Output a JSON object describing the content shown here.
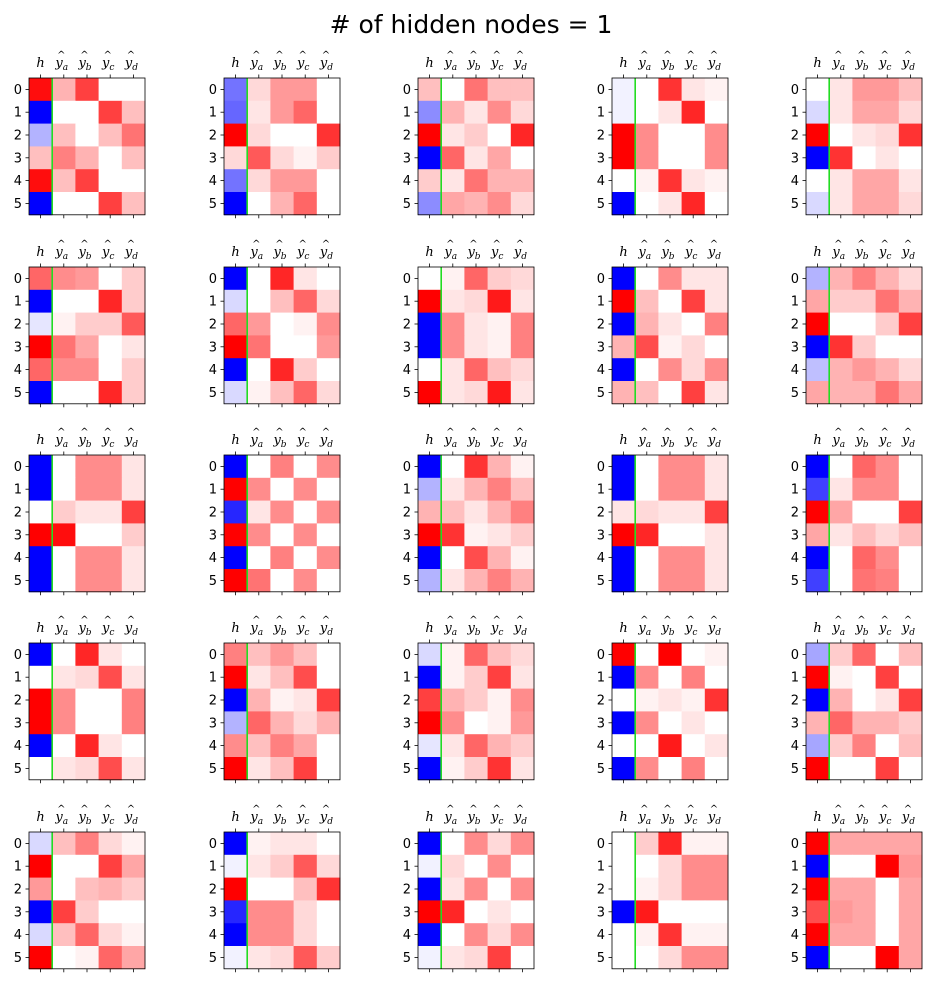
{
  "figure_title": "# of hidden nodes = 1",
  "colors": {
    "negative": "#0000ff",
    "positive": "#ff0000",
    "neutral": "#ffffff",
    "separator": "#22dd22",
    "axis": "#000000"
  },
  "chart_data": {
    "type": "heatmap",
    "grid": "5x5 panels",
    "value_range": [
      -1,
      1
    ],
    "colormap": "bwr",
    "column_labels": [
      {
        "base": "h",
        "hat": false,
        "sub": ""
      },
      {
        "base": "y",
        "hat": true,
        "sub": "a"
      },
      {
        "base": "y",
        "hat": true,
        "sub": "b"
      },
      {
        "base": "y",
        "hat": true,
        "sub": "c"
      },
      {
        "base": "y",
        "hat": true,
        "sub": "d"
      }
    ],
    "row_labels": [
      "0",
      "1",
      "2",
      "3",
      "4",
      "5"
    ],
    "panels": [
      [
        [
          0.95,
          0.3,
          0.75,
          0,
          0
        ],
        [
          -1,
          0,
          0,
          0.75,
          0.25
        ],
        [
          -0.3,
          0.25,
          0,
          0.25,
          0.55
        ],
        [
          0.25,
          0.5,
          0.3,
          0,
          0.25
        ],
        [
          0.95,
          0.25,
          0.75,
          0,
          0
        ],
        [
          -1,
          0,
          0,
          0.75,
          0.25
        ]
      ],
      [
        [
          -0.55,
          0.15,
          0.4,
          0.4,
          0
        ],
        [
          -0.6,
          0.1,
          0.4,
          0.6,
          0
        ],
        [
          1,
          0.15,
          0,
          0,
          0.8
        ],
        [
          0.15,
          0.65,
          0.15,
          0.05,
          0.2
        ],
        [
          -0.55,
          0.15,
          0.4,
          0.4,
          0
        ],
        [
          -1,
          0,
          0.3,
          0.6,
          0
        ]
      ],
      [
        [
          0.25,
          0,
          0.55,
          0.25,
          0.25
        ],
        [
          -0.45,
          0.3,
          0.1,
          0.45,
          0.15
        ],
        [
          1,
          0.1,
          0.2,
          0,
          0.85
        ],
        [
          -1,
          0.6,
          0.1,
          0.35,
          0
        ],
        [
          0.2,
          0.1,
          0.55,
          0.3,
          0.3
        ],
        [
          -0.45,
          0.35,
          0.3,
          0.45,
          0.15
        ]
      ],
      [
        [
          -0.05,
          0,
          0.8,
          0.1,
          0.05
        ],
        [
          -0.05,
          0,
          0.1,
          0.85,
          0
        ],
        [
          1,
          0.45,
          0,
          0,
          0.45
        ],
        [
          1,
          0.45,
          0,
          0,
          0.45
        ],
        [
          0,
          0.05,
          0.8,
          0.1,
          0.05
        ],
        [
          -1,
          0,
          0.1,
          0.85,
          0
        ]
      ],
      [
        [
          0,
          0.1,
          0.4,
          0.4,
          0.25
        ],
        [
          -0.15,
          0.1,
          0.35,
          0.35,
          0.15
        ],
        [
          1,
          0,
          0.1,
          0.15,
          0.8
        ],
        [
          -1,
          0.8,
          0,
          0.1,
          0
        ],
        [
          0,
          0.1,
          0.35,
          0.35,
          0.1
        ],
        [
          -0.15,
          0.1,
          0.35,
          0.35,
          0.15
        ]
      ],
      [
        [
          0.6,
          0.45,
          0.4,
          0,
          0.2
        ],
        [
          -1,
          0,
          0,
          0.85,
          0.2
        ],
        [
          -0.1,
          0.05,
          0.2,
          0.2,
          0.65
        ],
        [
          1,
          0.55,
          0.35,
          0,
          0.1
        ],
        [
          0.6,
          0.45,
          0.45,
          0,
          0.2
        ],
        [
          -1,
          0,
          0,
          0.85,
          0.2
        ]
      ],
      [
        [
          -1,
          0,
          0.85,
          0.1,
          0
        ],
        [
          -0.15,
          0,
          0.25,
          0.6,
          0.15
        ],
        [
          0.6,
          0.4,
          0,
          0.05,
          0.45
        ],
        [
          1,
          0.55,
          0,
          0,
          0.4
        ],
        [
          -1,
          0,
          0.85,
          0.2,
          0
        ],
        [
          -0.15,
          0.05,
          0.25,
          0.6,
          0.15
        ]
      ],
      [
        [
          0,
          0.05,
          0.6,
          0.2,
          0.15
        ],
        [
          1,
          0.1,
          0.15,
          0.9,
          0.1
        ],
        [
          -1,
          0.45,
          0.1,
          0.05,
          0.5
        ],
        [
          -1,
          0.45,
          0.1,
          0.05,
          0.5
        ],
        [
          0,
          0.1,
          0.6,
          0.25,
          0.15
        ],
        [
          1,
          0.1,
          0.15,
          0.9,
          0.1
        ]
      ],
      [
        [
          -1,
          0,
          0.45,
          0.1,
          0.1
        ],
        [
          1,
          0.25,
          0,
          0.75,
          0.1
        ],
        [
          -1,
          0.3,
          0.1,
          0,
          0.5
        ],
        [
          0.3,
          0.7,
          0.05,
          0.15,
          0
        ],
        [
          -1,
          0,
          0.45,
          0.15,
          0.45
        ],
        [
          0.3,
          0.25,
          0,
          0.75,
          0.1
        ]
      ],
      [
        [
          -0.3,
          0.3,
          0.5,
          0.3,
          0.15
        ],
        [
          0.35,
          0.2,
          0.2,
          0.55,
          0.3
        ],
        [
          1,
          0,
          0,
          0.2,
          0.75
        ],
        [
          -1,
          0.8,
          0.2,
          0,
          0
        ],
        [
          -0.25,
          0.3,
          0.4,
          0.3,
          0.15
        ],
        [
          0.35,
          0.3,
          0.3,
          0.55,
          0.35
        ]
      ],
      [
        [
          -1,
          0,
          0.45,
          0.45,
          0.1
        ],
        [
          -1,
          0,
          0.45,
          0.45,
          0.1
        ],
        [
          0,
          0.2,
          0.1,
          0.1,
          0.75
        ],
        [
          1,
          0.95,
          0,
          0,
          0.2
        ],
        [
          -1,
          0,
          0.45,
          0.45,
          0.1
        ],
        [
          -1,
          0,
          0.45,
          0.45,
          0.1
        ]
      ],
      [
        [
          -1,
          0,
          0.5,
          0,
          0.45
        ],
        [
          1,
          0.45,
          0,
          0.45,
          0
        ],
        [
          -0.85,
          0.1,
          0.45,
          0,
          0.45
        ],
        [
          1,
          0.45,
          0,
          0.45,
          0
        ],
        [
          -1,
          0,
          0.5,
          0,
          0.45
        ],
        [
          1,
          0.55,
          0,
          0.45,
          0
        ]
      ],
      [
        [
          -1,
          0,
          0.8,
          0.3,
          0.05
        ],
        [
          -0.3,
          0.1,
          0.3,
          0.5,
          0.25
        ],
        [
          0.3,
          0.25,
          0.1,
          0.3,
          0.5
        ],
        [
          1,
          0.8,
          0.05,
          0.1,
          0.2
        ],
        [
          -1,
          0,
          0.7,
          0.3,
          0.05
        ],
        [
          -0.3,
          0.1,
          0.3,
          0.5,
          0.3
        ]
      ],
      [
        [
          -1,
          0,
          0.45,
          0.45,
          0.1
        ],
        [
          -1,
          0,
          0.45,
          0.45,
          0.1
        ],
        [
          0.1,
          0.15,
          0.1,
          0.1,
          0.75
        ],
        [
          1,
          0.85,
          0,
          0,
          0.1
        ],
        [
          -1,
          0,
          0.45,
          0.45,
          0.1
        ],
        [
          -1,
          0,
          0.45,
          0.45,
          0.1
        ]
      ],
      [
        [
          -1,
          0,
          0.6,
          0.45,
          0
        ],
        [
          -0.75,
          0.1,
          0.45,
          0.45,
          0
        ],
        [
          1,
          0.35,
          0,
          0,
          0.75
        ],
        [
          0.35,
          0.1,
          0.25,
          0.15,
          0.25
        ],
        [
          -1,
          0,
          0.6,
          0.45,
          0
        ],
        [
          -0.75,
          0,
          0.55,
          0.5,
          0
        ]
      ],
      [
        [
          -1,
          0,
          0.85,
          0.1,
          0
        ],
        [
          0,
          0.1,
          0.15,
          0.7,
          0.1
        ],
        [
          1,
          0.45,
          0,
          0,
          0.5
        ],
        [
          1,
          0.45,
          0,
          0,
          0.5
        ],
        [
          -1,
          0,
          0.85,
          0.1,
          0
        ],
        [
          0,
          0.1,
          0.15,
          0.7,
          0.1
        ]
      ],
      [
        [
          0.5,
          0.25,
          0.4,
          0.25,
          0
        ],
        [
          1,
          0.1,
          0.25,
          0.7,
          0
        ],
        [
          -1,
          0.3,
          0.05,
          0.1,
          0.75
        ],
        [
          -0.3,
          0.6,
          0.3,
          0.15,
          0.3
        ],
        [
          0.45,
          0.25,
          0.5,
          0.35,
          0
        ],
        [
          1,
          0.1,
          0.25,
          0.75,
          0
        ]
      ],
      [
        [
          -0.15,
          0.05,
          0.6,
          0.25,
          0.15
        ],
        [
          -1,
          0.05,
          0.2,
          0.75,
          0.1
        ],
        [
          0.75,
          0.3,
          0.2,
          0.05,
          0.45
        ],
        [
          1,
          0.45,
          0,
          0.05,
          0.4
        ],
        [
          -0.1,
          0.1,
          0.6,
          0.3,
          0.2
        ],
        [
          -1,
          0.05,
          0.2,
          0.8,
          0.1
        ]
      ],
      [
        [
          1,
          0,
          1,
          0,
          0.05
        ],
        [
          -1,
          0.45,
          0,
          0.5,
          0
        ],
        [
          0,
          0.05,
          0.1,
          0.05,
          0.8
        ],
        [
          -1,
          0.45,
          0,
          0.1,
          0
        ],
        [
          0,
          0,
          0.9,
          0,
          0.1
        ],
        [
          -1,
          0.45,
          0,
          0.5,
          0
        ]
      ],
      [
        [
          -0.35,
          0.2,
          0.6,
          0,
          0.25
        ],
        [
          1,
          0.05,
          0,
          0.75,
          0
        ],
        [
          -1,
          0.3,
          0,
          0.1,
          0.75
        ],
        [
          0.3,
          0.6,
          0.3,
          0.3,
          0.2
        ],
        [
          -0.35,
          0.2,
          0.5,
          0,
          0.25
        ],
        [
          1,
          0,
          0,
          0.75,
          0
        ]
      ],
      [
        [
          -0.15,
          0.25,
          0.5,
          0.15,
          0.05
        ],
        [
          1,
          0,
          0,
          0.75,
          0.35
        ],
        [
          0.4,
          0,
          0.25,
          0.3,
          0.2
        ],
        [
          -1,
          0.75,
          0.2,
          0,
          0
        ],
        [
          -0.15,
          0.25,
          0.6,
          0.15,
          0.05
        ],
        [
          1,
          0,
          0.05,
          0.6,
          0.35
        ]
      ],
      [
        [
          -1,
          0.05,
          0.1,
          0.1,
          0
        ],
        [
          -0.05,
          0.1,
          0.2,
          0.65,
          0.15
        ],
        [
          1,
          0,
          0,
          0.25,
          0.8
        ],
        [
          -0.85,
          0.45,
          0.45,
          0.15,
          0
        ],
        [
          -1,
          0.45,
          0.45,
          0.15,
          0
        ],
        [
          -0.05,
          0.1,
          0.15,
          0.65,
          0.2
        ]
      ],
      [
        [
          -1,
          0,
          0.45,
          0.15,
          0.45
        ],
        [
          -0.05,
          0.15,
          0,
          0.45,
          0
        ],
        [
          -1,
          0.1,
          0.45,
          0,
          0.45
        ],
        [
          1,
          0.85,
          0,
          0.1,
          0
        ],
        [
          -1,
          0,
          0.45,
          0.15,
          0.45
        ],
        [
          -0.05,
          0.1,
          0.15,
          0.75,
          0
        ]
      ],
      [
        [
          0,
          0.2,
          0.85,
          0.05,
          0.05
        ],
        [
          0,
          0,
          0.15,
          0.45,
          0.45
        ],
        [
          0,
          0.05,
          0.15,
          0.45,
          0.45
        ],
        [
          -1,
          0.9,
          0,
          0,
          0
        ],
        [
          0,
          0.05,
          0.8,
          0.05,
          0.05
        ],
        [
          0,
          0,
          0.15,
          0.45,
          0.45
        ]
      ],
      [
        [
          1,
          0.35,
          0.35,
          0.35,
          0.35
        ],
        [
          -1,
          0,
          0,
          1,
          0.4
        ],
        [
          1,
          0.35,
          0.35,
          0,
          0.35
        ],
        [
          0.7,
          0.4,
          0.35,
          0,
          0.35
        ],
        [
          1,
          0.35,
          0.35,
          0,
          0.35
        ],
        [
          -1,
          0,
          0,
          1,
          0.35
        ]
      ]
    ]
  }
}
